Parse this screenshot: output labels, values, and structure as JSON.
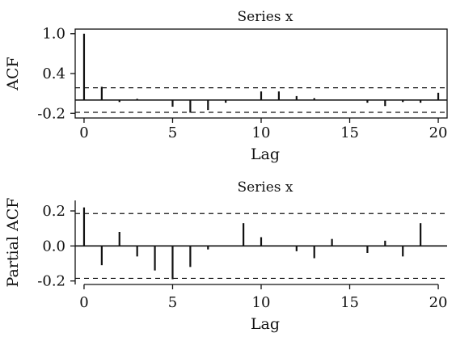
{
  "chart_data": [
    {
      "type": "bar",
      "title": "Series x",
      "xlabel": "Lag",
      "ylabel": "ACF",
      "xlim": [
        -0.5,
        20.5
      ],
      "ylim": [
        -0.27,
        1.07
      ],
      "xticks": [
        0,
        5,
        10,
        15,
        20
      ],
      "xtick_labels": [
        "0",
        "5",
        "10",
        "15",
        "20"
      ],
      "yticks": [
        1.0,
        0.4,
        -0.2
      ],
      "ytick_labels": [
        "1.0",
        "0.4",
        "-0.2"
      ],
      "confidence_bound": 0.185,
      "lags": [
        0,
        1,
        2,
        3,
        4,
        5,
        6,
        7,
        8,
        9,
        10,
        11,
        12,
        13,
        14,
        15,
        16,
        17,
        18,
        19,
        20
      ],
      "values": [
        1.0,
        0.2,
        -0.03,
        0.02,
        0.0,
        -0.1,
        -0.19,
        -0.15,
        -0.04,
        0.0,
        0.13,
        0.13,
        0.06,
        0.03,
        0.0,
        0.01,
        -0.04,
        -0.09,
        -0.03,
        -0.04,
        0.11
      ],
      "grid": false
    },
    {
      "type": "bar",
      "title": "Series x",
      "xlabel": "Lag",
      "ylabel": "Partial ACF",
      "xlim": [
        -0.5,
        20.5
      ],
      "ylim": [
        -0.22,
        0.26
      ],
      "xticks": [
        0,
        5,
        10,
        15,
        20
      ],
      "xtick_labels": [
        "0",
        "5",
        "10",
        "15",
        "20"
      ],
      "yticks": [
        0.2,
        0.0,
        -0.2
      ],
      "ytick_labels": [
        "0.2",
        "0.0",
        "-0.2"
      ],
      "confidence_bound": 0.185,
      "lags": [
        0,
        1,
        2,
        3,
        4,
        5,
        6,
        7,
        8,
        9,
        10,
        11,
        12,
        13,
        14,
        15,
        16,
        17,
        18,
        19,
        20
      ],
      "values": [
        0.22,
        -0.11,
        0.08,
        -0.06,
        -0.14,
        -0.19,
        -0.12,
        -0.02,
        0.0,
        0.13,
        0.05,
        0.0,
        -0.03,
        -0.07,
        0.04,
        0.0,
        -0.04,
        0.03,
        -0.06,
        0.13,
        0.0
      ],
      "grid": false
    }
  ]
}
